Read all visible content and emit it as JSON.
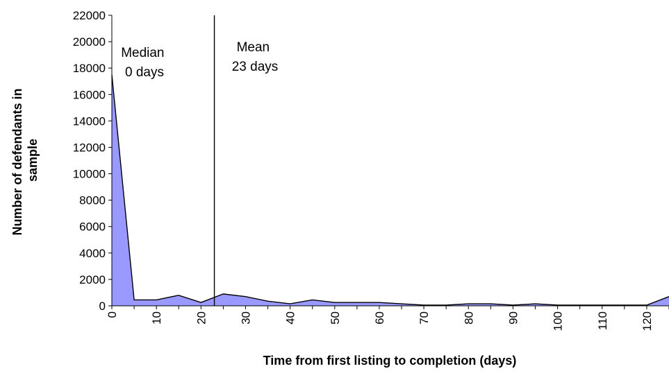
{
  "chart_data": {
    "type": "area",
    "xlabel": "Time from first listing to completion (days)",
    "ylabel": "Number of defendants in sample",
    "x": [
      0,
      5,
      10,
      15,
      20,
      25,
      30,
      35,
      40,
      45,
      50,
      55,
      60,
      65,
      70,
      75,
      80,
      85,
      90,
      95,
      100,
      105,
      110,
      115,
      120,
      125
    ],
    "series": [
      {
        "values": [
          17500,
          450,
          450,
          800,
          250,
          900,
          700,
          350,
          150,
          450,
          250,
          250,
          250,
          150,
          50,
          50,
          150,
          150,
          50,
          150,
          50,
          50,
          50,
          50,
          50,
          700
        ]
      }
    ],
    "xlim": [
      0,
      125
    ],
    "ylim": [
      0,
      22000
    ],
    "x_ticks": [
      0,
      10,
      20,
      30,
      40,
      50,
      60,
      70,
      80,
      90,
      100,
      110,
      120
    ],
    "y_ticks": [
      0,
      2000,
      4000,
      6000,
      8000,
      10000,
      12000,
      14000,
      16000,
      18000,
      20000,
      22000
    ],
    "fill_color": "#9999ff",
    "line_color": "#000000",
    "grid": false,
    "reference_lines": [
      {
        "x": 23,
        "label_lines": [
          "Mean",
          "23 days"
        ]
      }
    ],
    "annotations": [
      {
        "label_lines": [
          "Median",
          "0 days"
        ]
      }
    ]
  }
}
